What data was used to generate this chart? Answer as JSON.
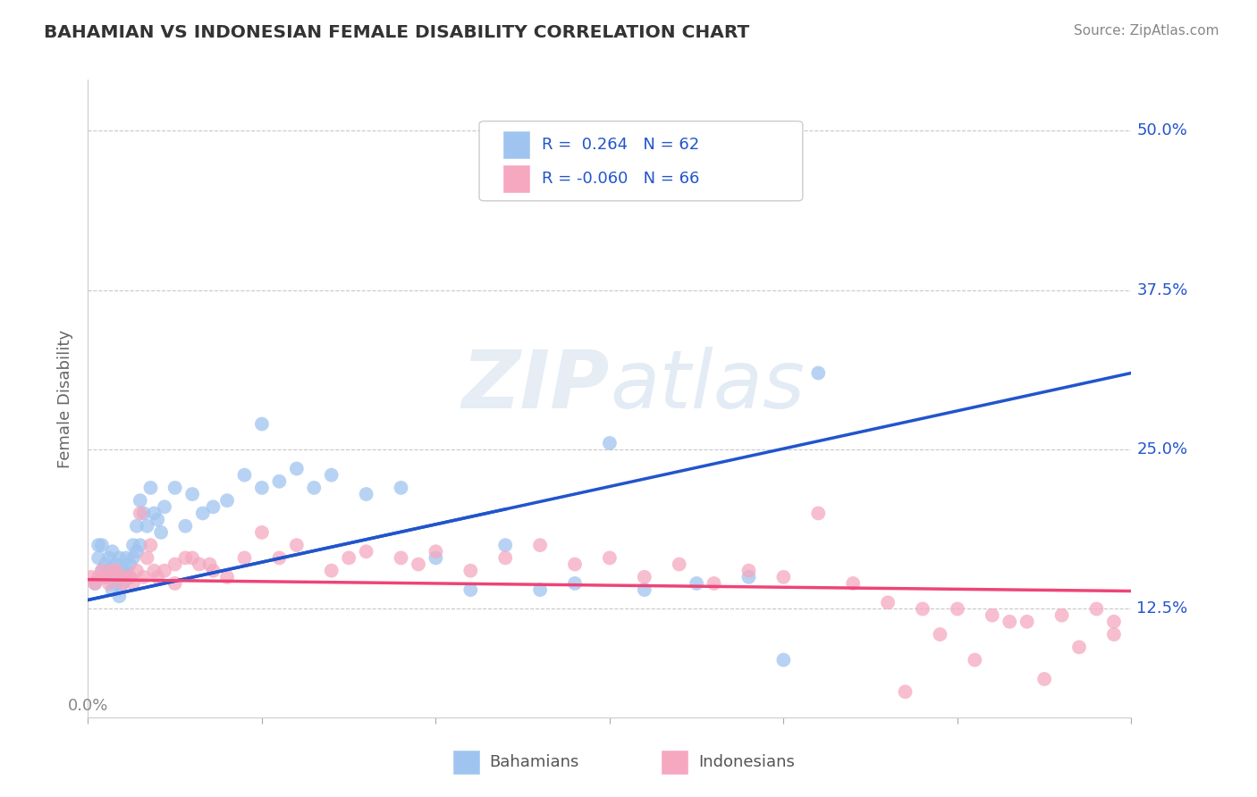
{
  "title": "BAHAMIAN VS INDONESIAN FEMALE DISABILITY CORRELATION CHART",
  "source": "Source: ZipAtlas.com",
  "ylabel": "Female Disability",
  "xlabel": "",
  "xlim": [
    0.0,
    0.3
  ],
  "ylim": [
    0.04,
    0.54
  ],
  "xtick_positions": [
    0.0,
    0.05,
    0.1,
    0.15,
    0.2,
    0.25,
    0.3
  ],
  "ytick_positions": [
    0.125,
    0.25,
    0.375,
    0.5
  ],
  "ytick_labels": [
    "12.5%",
    "25.0%",
    "37.5%",
    "50.0%"
  ],
  "background_color": "#ffffff",
  "grid_color": "#c8c8c8",
  "watermark_text": "ZIPatlas",
  "watermark_color": "#d0dce8",
  "blue_scatter_color": "#a0c4f0",
  "pink_scatter_color": "#f5a8c0",
  "blue_line_color": "#2255cc",
  "blue_dash_color": "#6699dd",
  "pink_line_color": "#ee4477",
  "legend_text_color": "#2255cc",
  "title_color": "#333333",
  "source_color": "#888888",
  "ylabel_color": "#666666",
  "axis_label_color": "#888888",
  "blue_R": 0.264,
  "blue_N": 62,
  "pink_R": -0.06,
  "pink_N": 66,
  "bahamians_x": [
    0.002,
    0.003,
    0.003,
    0.004,
    0.004,
    0.005,
    0.005,
    0.006,
    0.006,
    0.007,
    0.007,
    0.007,
    0.008,
    0.008,
    0.008,
    0.009,
    0.009,
    0.01,
    0.01,
    0.011,
    0.011,
    0.012,
    0.012,
    0.013,
    0.013,
    0.014,
    0.014,
    0.015,
    0.015,
    0.016,
    0.017,
    0.018,
    0.019,
    0.02,
    0.021,
    0.022,
    0.025,
    0.028,
    0.03,
    0.033,
    0.036,
    0.04,
    0.045,
    0.05,
    0.055,
    0.06,
    0.065,
    0.07,
    0.08,
    0.09,
    0.1,
    0.11,
    0.12,
    0.13,
    0.14,
    0.15,
    0.16,
    0.175,
    0.19,
    0.2,
    0.21,
    0.05
  ],
  "bahamians_y": [
    0.145,
    0.175,
    0.165,
    0.155,
    0.175,
    0.15,
    0.16,
    0.155,
    0.165,
    0.14,
    0.155,
    0.17,
    0.15,
    0.16,
    0.145,
    0.135,
    0.165,
    0.155,
    0.145,
    0.155,
    0.165,
    0.16,
    0.15,
    0.165,
    0.175,
    0.17,
    0.19,
    0.21,
    0.175,
    0.2,
    0.19,
    0.22,
    0.2,
    0.195,
    0.185,
    0.205,
    0.22,
    0.19,
    0.215,
    0.2,
    0.205,
    0.21,
    0.23,
    0.22,
    0.225,
    0.235,
    0.22,
    0.23,
    0.215,
    0.22,
    0.165,
    0.14,
    0.175,
    0.14,
    0.145,
    0.255,
    0.14,
    0.145,
    0.15,
    0.085,
    0.31,
    0.27
  ],
  "indonesians_x": [
    0.001,
    0.002,
    0.003,
    0.004,
    0.005,
    0.006,
    0.007,
    0.008,
    0.009,
    0.01,
    0.011,
    0.012,
    0.013,
    0.014,
    0.015,
    0.016,
    0.017,
    0.018,
    0.019,
    0.02,
    0.022,
    0.025,
    0.028,
    0.032,
    0.036,
    0.04,
    0.045,
    0.05,
    0.06,
    0.07,
    0.08,
    0.09,
    0.1,
    0.11,
    0.12,
    0.13,
    0.14,
    0.15,
    0.16,
    0.17,
    0.18,
    0.19,
    0.2,
    0.21,
    0.22,
    0.23,
    0.24,
    0.25,
    0.26,
    0.27,
    0.28,
    0.29,
    0.295,
    0.295,
    0.285,
    0.275,
    0.265,
    0.255,
    0.245,
    0.235,
    0.025,
    0.03,
    0.035,
    0.055,
    0.075,
    0.095
  ],
  "indonesians_y": [
    0.15,
    0.145,
    0.15,
    0.155,
    0.15,
    0.145,
    0.155,
    0.155,
    0.15,
    0.145,
    0.15,
    0.15,
    0.145,
    0.155,
    0.2,
    0.15,
    0.165,
    0.175,
    0.155,
    0.15,
    0.155,
    0.145,
    0.165,
    0.16,
    0.155,
    0.15,
    0.165,
    0.185,
    0.175,
    0.155,
    0.17,
    0.165,
    0.17,
    0.155,
    0.165,
    0.175,
    0.16,
    0.165,
    0.15,
    0.16,
    0.145,
    0.155,
    0.15,
    0.2,
    0.145,
    0.13,
    0.125,
    0.125,
    0.12,
    0.115,
    0.12,
    0.125,
    0.115,
    0.105,
    0.095,
    0.07,
    0.115,
    0.085,
    0.105,
    0.06,
    0.16,
    0.165,
    0.16,
    0.165,
    0.165,
    0.16
  ]
}
